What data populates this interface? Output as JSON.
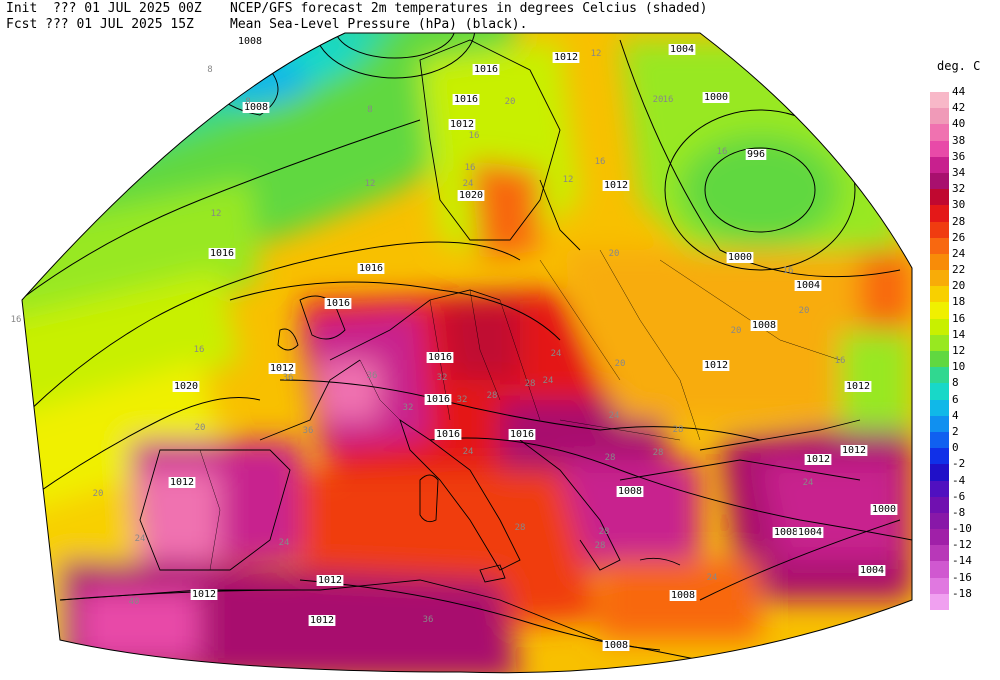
{
  "header": {
    "init_label": "Init",
    "init_value": "??? 01 JUL 2025 00Z",
    "fcst_label": "Fcst",
    "fcst_value": "??? 01 JUL 2025 15Z",
    "title_line1": "NCEP/GFS forecast 2m temperatures in degrees Celcius (shaded)",
    "title_line2": "Mean Sea-Level Pressure (hPa) (black)."
  },
  "legend": {
    "title": "deg. C",
    "entries": [
      {
        "label": "44",
        "color": "#f8b8c8"
      },
      {
        "label": "42",
        "color": "#f09ab8"
      },
      {
        "label": "40",
        "color": "#f072b0"
      },
      {
        "label": "38",
        "color": "#e84aa8"
      },
      {
        "label": "36",
        "color": "#c8208e"
      },
      {
        "label": "34",
        "color": "#a8106e"
      },
      {
        "label": "32",
        "color": "#c00830"
      },
      {
        "label": "30",
        "color": "#e41818"
      },
      {
        "label": "28",
        "color": "#f03c10"
      },
      {
        "label": "26",
        "color": "#f86810"
      },
      {
        "label": "24",
        "color": "#f88c08"
      },
      {
        "label": "22",
        "color": "#f8ac08"
      },
      {
        "label": "20",
        "color": "#f8d000"
      },
      {
        "label": "18",
        "color": "#f0f000"
      },
      {
        "label": "16",
        "color": "#c8f000"
      },
      {
        "label": "14",
        "color": "#98e820"
      },
      {
        "label": "12",
        "color": "#60d840"
      },
      {
        "label": "10",
        "color": "#30d890"
      },
      {
        "label": "8",
        "color": "#18d8c8"
      },
      {
        "label": "6",
        "color": "#10b8e8"
      },
      {
        "label": "4",
        "color": "#1090f0"
      },
      {
        "label": "2",
        "color": "#1060f0"
      },
      {
        "label": "0",
        "color": "#1030e8"
      },
      {
        "label": "-2",
        "color": "#2010c8"
      },
      {
        "label": "-4",
        "color": "#5010c0"
      },
      {
        "label": "-6",
        "color": "#7010b0"
      },
      {
        "label": "-8",
        "color": "#8818a8"
      },
      {
        "label": "-10",
        "color": "#a020a8"
      },
      {
        "label": "-12",
        "color": "#b838b8"
      },
      {
        "label": "-14",
        "color": "#d058d0"
      },
      {
        "label": "-16",
        "color": "#e078e0"
      },
      {
        "label": "-18",
        "color": "#f0a0f0"
      }
    ]
  },
  "map": {
    "isobar_labels": [
      "1008",
      "1008",
      "1004",
      "1012",
      "1016",
      "1016",
      "1012",
      "1020",
      "1016",
      "1016",
      "1020",
      "1016",
      "1016",
      "1016",
      "1012",
      "1012",
      "1012",
      "1012",
      "1012",
      "1008",
      "1016",
      "1016",
      "1008",
      "1008",
      "996",
      "1000",
      "1000",
      "1004",
      "1008",
      "1012",
      "1012",
      "1012",
      "1012",
      "1008",
      "1004",
      "1000",
      "1004",
      "1012"
    ],
    "temp_labels": [
      "8",
      "8",
      "8",
      "12",
      "12",
      "12",
      "16",
      "16",
      "16",
      "16",
      "16",
      "16",
      "16",
      "16",
      "20",
      "20",
      "20",
      "20",
      "20",
      "20",
      "20",
      "24",
      "24",
      "24",
      "24",
      "24",
      "24",
      "24",
      "28",
      "28",
      "28",
      "28",
      "28",
      "28",
      "32",
      "32",
      "32",
      "36",
      "36",
      "36",
      "36",
      "40",
      "12",
      "16",
      "24",
      "24",
      "28",
      "28",
      "20"
    ]
  }
}
